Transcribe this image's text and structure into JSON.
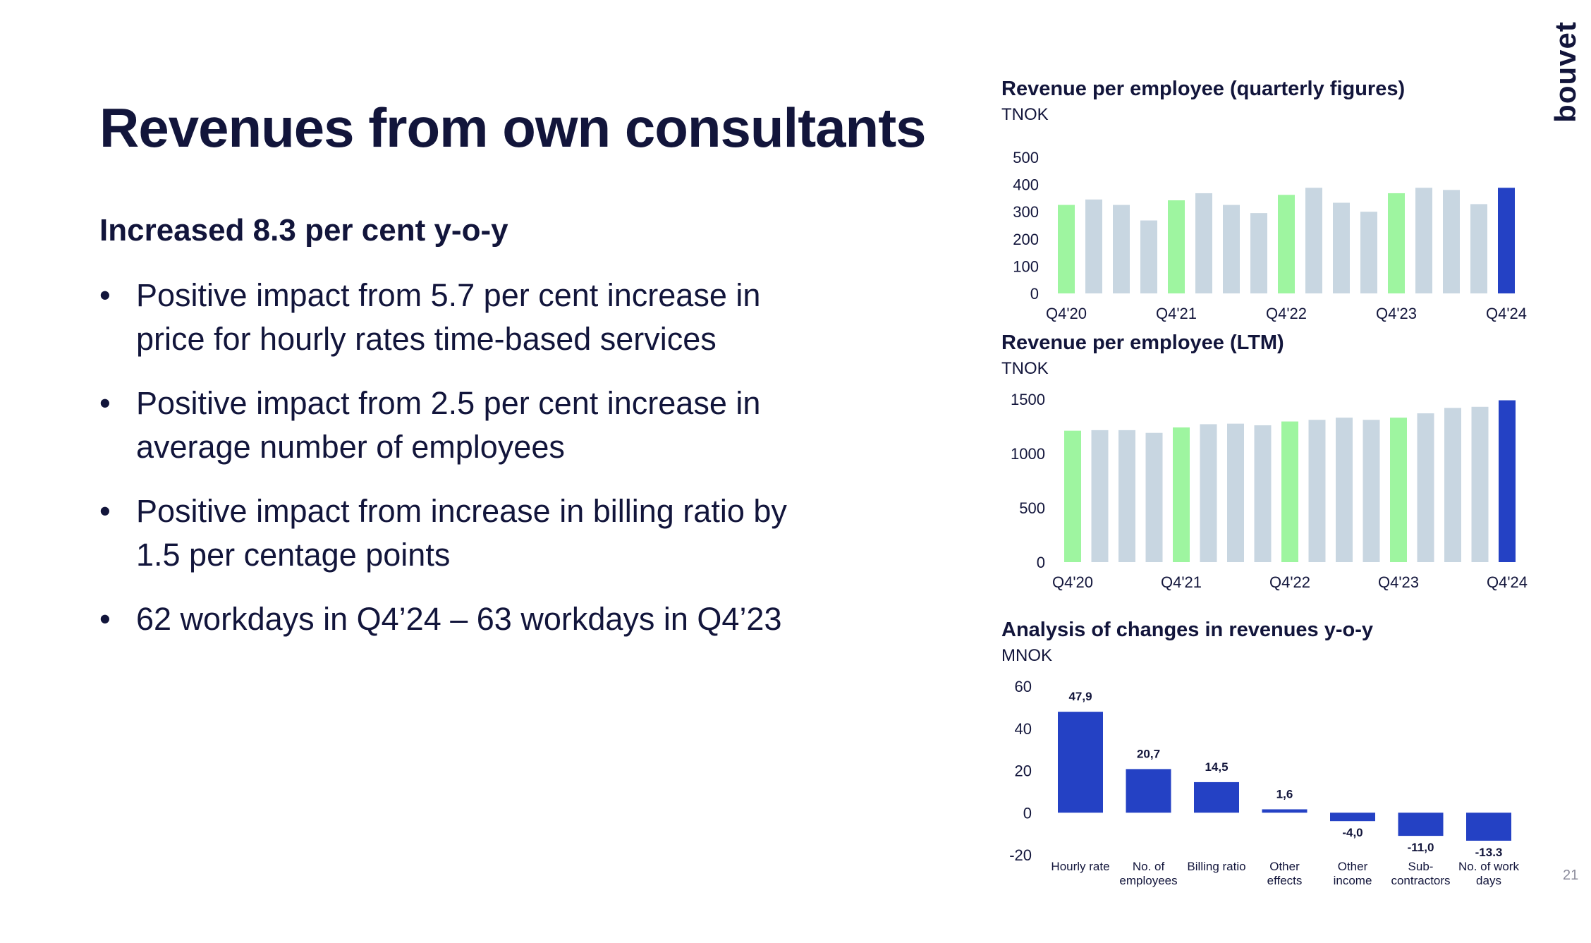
{
  "logo": {
    "text": "bouvet"
  },
  "page_title": "Revenues from own consultants",
  "subtitle": "Increased 8.3 per cent y-o-y",
  "bullets": [
    {
      "dot": "•",
      "text": "Positive impact from 5.7 per cent increase in price for hourly rates time-based services"
    },
    {
      "dot": "•",
      "text": "Positive impact from 2.5 per cent increase in average number of employees"
    },
    {
      "dot": "•",
      "text": "Positive impact from increase in billing ratio by 1.5 per centage points"
    },
    {
      "dot": "•",
      "text": "62 workdays in Q4’24 – 63 workdays in Q4’23"
    }
  ],
  "page_number": "21",
  "colors": {
    "q4_highlight": "#9ef5a0",
    "other": "#c8d6e1",
    "latest": "#2441c4",
    "bridge": "#2441c4",
    "text": "#12153b"
  },
  "chart_data": [
    {
      "type": "bar",
      "title": "Revenue per employee (quarterly figures)",
      "unit": "TNOK",
      "ylim": [
        0,
        500
      ],
      "yticks": [
        0,
        100,
        200,
        300,
        400,
        500
      ],
      "categories": [
        "Q4'20",
        "Q1'21",
        "Q2'21",
        "Q3'21",
        "Q4'21",
        "Q1'22",
        "Q2'22",
        "Q3'22",
        "Q4'22",
        "Q1'23",
        "Q2'23",
        "Q3'23",
        "Q4'23",
        "Q1'24",
        "Q2'24",
        "Q3'24",
        "Q4'24"
      ],
      "tick_labels": [
        "Q4'20",
        "",
        "",
        "",
        "Q4'21",
        "",
        "",
        "",
        "Q4'22",
        "",
        "",
        "",
        "Q4'23",
        "",
        "",
        "",
        "Q4'24"
      ],
      "values": [
        325,
        345,
        325,
        268,
        342,
        368,
        325,
        295,
        362,
        388,
        333,
        300,
        368,
        388,
        380,
        328,
        388
      ],
      "highlight": [
        "q4",
        "other",
        "other",
        "other",
        "q4",
        "other",
        "other",
        "other",
        "q4",
        "other",
        "other",
        "other",
        "q4",
        "other",
        "other",
        "other",
        "latest"
      ],
      "grid": false
    },
    {
      "type": "bar",
      "title": "Revenue per employee (LTM)",
      "unit": "TNOK",
      "ylim": [
        0,
        1500
      ],
      "yticks": [
        0,
        500,
        1000,
        1500
      ],
      "categories": [
        "Q4'20",
        "Q1'21",
        "Q2'21",
        "Q3'21",
        "Q4'21",
        "Q1'22",
        "Q2'22",
        "Q3'22",
        "Q4'22",
        "Q1'23",
        "Q2'23",
        "Q3'23",
        "Q4'23",
        "Q1'24",
        "Q2'24",
        "Q3'24",
        "Q4'24"
      ],
      "tick_labels": [
        "Q4'20",
        "",
        "",
        "",
        "Q4'21",
        "",
        "",
        "",
        "Q4'22",
        "",
        "",
        "",
        "Q4'23",
        "",
        "",
        "",
        "Q4'24"
      ],
      "values": [
        1210,
        1215,
        1215,
        1190,
        1240,
        1270,
        1275,
        1260,
        1295,
        1310,
        1330,
        1310,
        1330,
        1370,
        1420,
        1430,
        1490
      ],
      "highlight": [
        "q4",
        "other",
        "other",
        "other",
        "q4",
        "other",
        "other",
        "other",
        "q4",
        "other",
        "other",
        "other",
        "q4",
        "other",
        "other",
        "other",
        "latest"
      ],
      "grid": false
    },
    {
      "type": "bar",
      "title": "Analysis of changes in revenues y-o-y",
      "unit": "MNOK",
      "ylim": [
        -20,
        60
      ],
      "yticks": [
        -20,
        0,
        20,
        40,
        60
      ],
      "categories": [
        [
          "Hourly rate"
        ],
        [
          "No. of",
          "employees"
        ],
        [
          "Billing ratio"
        ],
        [
          "Other",
          "effects"
        ],
        [
          "Other",
          "income"
        ],
        [
          "Sub-",
          "contractors"
        ],
        [
          "No. of work",
          "days"
        ]
      ],
      "values": [
        47.9,
        20.7,
        14.5,
        1.6,
        -4.0,
        -11.0,
        -13.3
      ],
      "data_labels": [
        "47,9",
        "20,7",
        "14,5",
        "1,6",
        "-4,0",
        "-11,0",
        "-13.3"
      ],
      "grid": false
    }
  ]
}
